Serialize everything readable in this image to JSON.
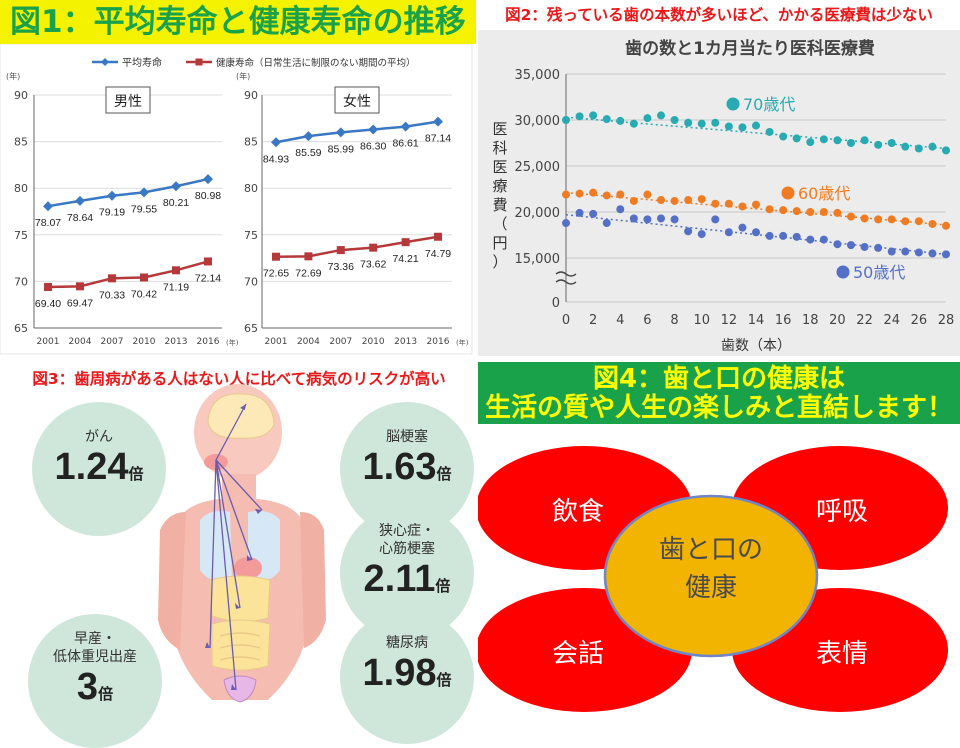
{
  "titles": {
    "fig1": "図1：平均寿命と健康寿命の推移",
    "fig2": "図2：残っている歯の本数が多いほど、かかる医療費は少ない",
    "fig3": "図3：歯周病がある人はない人に比べて病気のリスクが高い",
    "fig4_line1": "図4：歯と口の健康は",
    "fig4_line2": "生活の質や人生の楽しみと直結します！"
  },
  "colors": {
    "fig1_title_bg": "#f5f200",
    "fig1_title_text": "#1aa24a",
    "red_title": "#e8191b",
    "avg_life": "#3b78c3",
    "healthy_life": "#b5393a",
    "s70": "#27aab1",
    "s60": "#ef7c22",
    "s50": "#5470c6",
    "risk_circle": "#cfe7da",
    "petal": "#ff0000",
    "center": "#f2b400",
    "fig4_bg": "#1aa24a",
    "fig4_text": "#ffff00"
  },
  "fig1_legend": {
    "avg": "平均寿命",
    "healthy": "健康寿命（日常生活に制限のない期間の平均）",
    "unit_y": "(年)",
    "unit_x": "(年)"
  },
  "chart_data": [
    {
      "type": "line",
      "panel": "男性",
      "x": [
        2001,
        2004,
        2007,
        2010,
        2013,
        2016
      ],
      "ylim": [
        65,
        90
      ],
      "yticks": [
        65,
        70,
        75,
        80,
        85,
        90
      ],
      "series": [
        {
          "name": "平均寿命",
          "values": [
            78.07,
            78.64,
            79.19,
            79.55,
            80.21,
            80.98
          ]
        },
        {
          "name": "健康寿命",
          "values": [
            69.4,
            69.47,
            70.33,
            70.42,
            71.19,
            72.14
          ]
        }
      ]
    },
    {
      "type": "line",
      "panel": "女性",
      "x": [
        2001,
        2004,
        2007,
        2010,
        2013,
        2016
      ],
      "ylim": [
        65,
        90
      ],
      "yticks": [
        65,
        70,
        75,
        80,
        85,
        90
      ],
      "series": [
        {
          "name": "平均寿命",
          "values": [
            84.93,
            85.59,
            85.99,
            86.3,
            86.61,
            87.14
          ]
        },
        {
          "name": "健康寿命",
          "values": [
            72.65,
            72.69,
            73.36,
            73.62,
            74.21,
            74.79
          ]
        }
      ]
    },
    {
      "type": "scatter",
      "title": "歯の数と1カ月当たり医科医療費",
      "xlabel": "歯数（本）",
      "ylabel": "医科医療費（円）",
      "xlim": [
        0,
        28
      ],
      "ylim": [
        0,
        35000
      ],
      "xticks": [
        0,
        2,
        4,
        6,
        8,
        10,
        12,
        14,
        16,
        18,
        20,
        22,
        24,
        26,
        28
      ],
      "yticks": [
        0,
        15000,
        20000,
        25000,
        30000,
        35000
      ],
      "ytick_labels": [
        "0",
        "15,000",
        "20,000",
        "25,000",
        "30,000",
        "35,000"
      ],
      "axis_break": true,
      "x": [
        0,
        1,
        2,
        3,
        4,
        5,
        6,
        7,
        8,
        9,
        10,
        11,
        12,
        13,
        14,
        15,
        16,
        17,
        18,
        19,
        20,
        21,
        22,
        23,
        24,
        25,
        26,
        27,
        28
      ],
      "series": [
        {
          "name": "70歳代",
          "values": [
            30000,
            30400,
            30500,
            30100,
            29900,
            29600,
            30200,
            30500,
            30000,
            29700,
            29600,
            29700,
            29300,
            29200,
            29400,
            28700,
            28200,
            28000,
            27600,
            27900,
            27800,
            27500,
            27800,
            27300,
            27500,
            27100,
            26900,
            27100,
            26700
          ]
        },
        {
          "name": "60歳代",
          "values": [
            21900,
            22000,
            22100,
            21800,
            21900,
            21200,
            21900,
            21300,
            21200,
            21300,
            21400,
            20900,
            20900,
            20600,
            20800,
            20300,
            20200,
            20100,
            20000,
            20000,
            19900,
            19500,
            19300,
            19200,
            19200,
            19000,
            19000,
            18700,
            18500
          ]
        },
        {
          "name": "50歳代",
          "values": [
            18800,
            19900,
            19800,
            18800,
            20300,
            19300,
            19200,
            19300,
            19200,
            17900,
            17600,
            19200,
            17800,
            18300,
            17800,
            17400,
            17400,
            17300,
            17000,
            17000,
            16500,
            16400,
            16200,
            16100,
            15700,
            15700,
            15600,
            15500,
            15400
          ]
        }
      ],
      "trend": {
        "70歳代": [
          30300,
          26900
        ],
        "60歳代": [
          22100,
          18600
        ],
        "50歳代": [
          19700,
          15400
        ]
      }
    }
  ],
  "risks": [
    {
      "label": "がん",
      "value": "1.24",
      "unit": "倍"
    },
    {
      "label": "脳梗塞",
      "value": "1.63",
      "unit": "倍"
    },
    {
      "label": "狭心症・",
      "label2": "心筋梗塞",
      "value": "2.11",
      "unit": "倍"
    },
    {
      "label": "早産・",
      "label2": "低体重児出産",
      "value": "3",
      "unit": "倍"
    },
    {
      "label": "糖尿病",
      "value": "1.98",
      "unit": "倍"
    }
  ],
  "fig4": {
    "center_line1": "歯と口の",
    "center_line2": "健康",
    "petals": [
      "飲食",
      "呼吸",
      "会話",
      "表情"
    ]
  }
}
